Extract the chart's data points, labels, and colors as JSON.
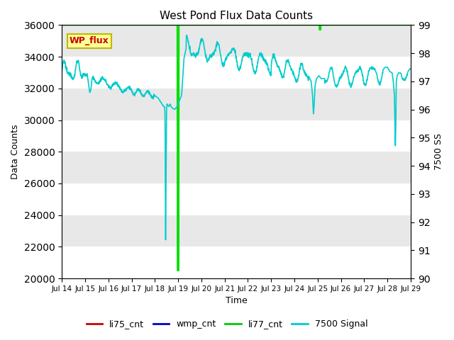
{
  "title": "West Pond Flux Data Counts",
  "xlabel": "Time",
  "ylabel_left": "Data Counts",
  "ylabel_right": "7500 SS",
  "ylim_left": [
    20000,
    36000
  ],
  "ylim_right": [
    90.0,
    99.0
  ],
  "xlim": [
    0,
    15
  ],
  "x_tick_labels": [
    "Jul 14",
    "Jul 15",
    "Jul 16",
    "Jul 17",
    "Jul 18",
    "Jul 19",
    "Jul 20",
    "Jul 21",
    "Jul 22",
    "Jul 23",
    "Jul 24",
    "Jul 25",
    "Jul 26",
    "Jul 27",
    "Jul 28",
    "Jul 29"
  ],
  "x_tick_positions": [
    0,
    1,
    2,
    3,
    4,
    5,
    6,
    7,
    8,
    9,
    10,
    11,
    12,
    13,
    14,
    15
  ],
  "wp_flux_label": "WP_flux",
  "wp_flux_label_color": "#cc0000",
  "wp_flux_box_color": "#ffff99",
  "legend_entries": [
    "li75_cnt",
    "wmp_cnt",
    "li77_cnt",
    "7500 Signal"
  ],
  "legend_colors": [
    "#cc0000",
    "#0000cc",
    "#00cc00",
    "#00cccc"
  ],
  "bg_color": "#e8e8e8",
  "title_fontsize": 11,
  "axis_fontsize": 9,
  "yticks_left": [
    20000,
    22000,
    24000,
    26000,
    28000,
    30000,
    32000,
    34000,
    36000
  ],
  "yticks_right": [
    90.0,
    91.0,
    92.0,
    93.0,
    94.0,
    95.0,
    96.0,
    97.0,
    98.0,
    99.0
  ]
}
